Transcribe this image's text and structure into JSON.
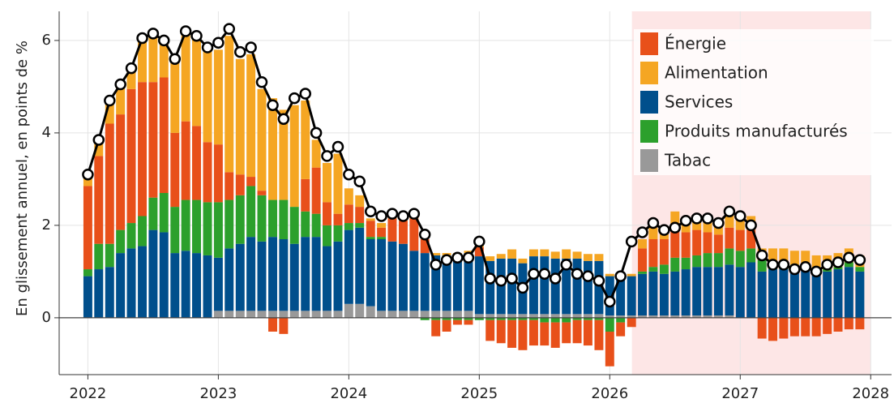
{
  "chart_data": {
    "type": "stacked_bar_line",
    "ylabel": "En glissement annuel, en points de %",
    "x": [
      2022.0,
      2022.083,
      2022.167,
      2022.25,
      2022.333,
      2022.417,
      2022.5,
      2022.583,
      2022.667,
      2022.75,
      2022.833,
      2022.917,
      2023.0,
      2023.083,
      2023.167,
      2023.25,
      2023.333,
      2023.417,
      2023.5,
      2023.583,
      2023.667,
      2023.75,
      2023.833,
      2023.917,
      2024.0,
      2024.083,
      2024.167,
      2024.25,
      2024.333,
      2024.417,
      2024.5,
      2024.583,
      2024.667,
      2024.75,
      2024.833,
      2024.917,
      2025.0,
      2025.083,
      2025.167,
      2025.25,
      2025.333,
      2025.417,
      2025.5,
      2025.583,
      2025.667,
      2025.75,
      2025.833,
      2025.917,
      2026.0,
      2026.083,
      2026.167,
      2026.25,
      2026.333,
      2026.417,
      2026.5,
      2026.583,
      2026.667,
      2026.75,
      2026.833,
      2026.917,
      2027.0,
      2027.083,
      2027.167,
      2027.25,
      2027.333,
      2027.417,
      2027.5,
      2027.583,
      2027.667,
      2027.75,
      2027.833,
      2027.917
    ],
    "series": [
      {
        "name": "Énergie",
        "color": "#e8501a",
        "values": [
          1.8,
          1.9,
          2.6,
          2.5,
          2.9,
          2.9,
          2.5,
          2.5,
          1.6,
          1.7,
          1.6,
          1.3,
          1.25,
          0.6,
          0.45,
          0.2,
          0.1,
          -0.3,
          -0.35,
          0.0,
          0.7,
          1.0,
          0.5,
          0.25,
          0.4,
          0.35,
          0.35,
          0.2,
          0.5,
          0.5,
          0.7,
          0.3,
          -0.35,
          -0.25,
          -0.1,
          -0.1,
          0.2,
          -0.45,
          -0.5,
          -0.6,
          -0.65,
          -0.55,
          -0.5,
          -0.55,
          -0.45,
          -0.5,
          -0.55,
          -0.65,
          -0.75,
          -0.3,
          -0.2,
          0.5,
          0.6,
          0.55,
          0.7,
          0.55,
          0.55,
          0.45,
          0.4,
          0.45,
          0.45,
          0.4,
          -0.45,
          -0.5,
          -0.45,
          -0.4,
          -0.4,
          -0.4,
          -0.35,
          -0.3,
          -0.25,
          -0.25
        ]
      },
      {
        "name": "Alimentation",
        "color": "#f5a623",
        "values": [
          0.25,
          0.35,
          0.5,
          0.65,
          0.5,
          0.95,
          1.05,
          0.8,
          1.6,
          1.95,
          1.95,
          2.05,
          2.05,
          2.95,
          2.5,
          2.65,
          2.2,
          2.2,
          1.95,
          2.2,
          1.7,
          0.6,
          0.85,
          1.3,
          0.35,
          0.25,
          0.05,
          0.1,
          0.05,
          0.05,
          0.05,
          0.0,
          0.05,
          0.05,
          0.05,
          0.05,
          0.1,
          0.1,
          0.1,
          0.2,
          0.1,
          0.15,
          0.15,
          0.15,
          0.2,
          0.15,
          0.15,
          0.15,
          0.05,
          0.0,
          0.05,
          0.2,
          0.25,
          0.25,
          0.3,
          0.3,
          0.3,
          0.3,
          0.3,
          0.35,
          0.3,
          0.3,
          0.25,
          0.3,
          0.3,
          0.3,
          0.3,
          0.3,
          0.3,
          0.3,
          0.3,
          0.25
        ]
      },
      {
        "name": "Services",
        "color": "#004f8c",
        "values": [
          0.9,
          1.05,
          1.1,
          1.4,
          1.5,
          1.55,
          1.9,
          1.85,
          1.4,
          1.45,
          1.4,
          1.35,
          1.15,
          1.35,
          1.45,
          1.6,
          1.5,
          1.6,
          1.55,
          1.45,
          1.6,
          1.6,
          1.4,
          1.5,
          1.6,
          1.65,
          1.45,
          1.55,
          1.5,
          1.45,
          1.3,
          1.25,
          1.2,
          1.2,
          1.2,
          1.25,
          1.25,
          1.15,
          1.2,
          1.2,
          1.1,
          1.25,
          1.25,
          1.2,
          1.2,
          1.2,
          1.15,
          1.15,
          0.85,
          0.85,
          0.85,
          0.9,
          0.95,
          0.9,
          0.95,
          1.0,
          1.05,
          1.05,
          1.05,
          1.1,
          1.1,
          1.2,
          1.0,
          1.05,
          1.05,
          1.05,
          1.05,
          1.0,
          1.0,
          1.05,
          1.1,
          1.0
        ]
      },
      {
        "name": "Produits manufacturés",
        "color": "#2ca02c",
        "values": [
          0.15,
          0.55,
          0.5,
          0.5,
          0.55,
          0.65,
          0.7,
          0.85,
          1.0,
          1.1,
          1.15,
          1.15,
          1.2,
          1.05,
          1.05,
          1.1,
          1.0,
          0.8,
          0.85,
          0.8,
          0.55,
          0.5,
          0.45,
          0.35,
          0.15,
          0.1,
          0.05,
          0.05,
          0.0,
          0.0,
          0.0,
          -0.05,
          -0.05,
          -0.05,
          -0.05,
          -0.05,
          -0.05,
          -0.05,
          -0.05,
          -0.05,
          -0.05,
          -0.05,
          -0.1,
          -0.1,
          -0.1,
          -0.05,
          -0.05,
          -0.05,
          -0.3,
          -0.1,
          0.0,
          0.05,
          0.1,
          0.2,
          0.3,
          0.25,
          0.25,
          0.3,
          0.3,
          0.35,
          0.35,
          0.3,
          0.25,
          0.15,
          0.15,
          0.1,
          0.1,
          0.05,
          0.05,
          0.05,
          0.1,
          0.1
        ]
      },
      {
        "name": "Tabac",
        "color": "#999999",
        "values": [
          0,
          0,
          0,
          0,
          0,
          0,
          0,
          0,
          0,
          0,
          0,
          0,
          0.15,
          0.15,
          0.15,
          0.15,
          0.15,
          0.15,
          0.15,
          0.15,
          0.15,
          0.15,
          0.15,
          0.15,
          0.3,
          0.3,
          0.25,
          0.15,
          0.15,
          0.15,
          0.15,
          0.15,
          0.15,
          0.15,
          0.15,
          0.15,
          0.08,
          0.08,
          0.08,
          0.08,
          0.08,
          0.08,
          0.08,
          0.08,
          0.08,
          0.08,
          0.08,
          0.08,
          0.05,
          0.05,
          0.05,
          0.05,
          0.05,
          0.05,
          0.05,
          0.05,
          0.05,
          0.05,
          0.05,
          0.05,
          0,
          0,
          0,
          0,
          0,
          0,
          0,
          0,
          0,
          0,
          0,
          0
        ]
      }
    ],
    "line": {
      "color": "#000000",
      "values": [
        3.1,
        3.85,
        4.7,
        5.05,
        5.4,
        6.05,
        6.15,
        6.0,
        5.6,
        6.2,
        6.1,
        5.85,
        5.95,
        6.25,
        5.75,
        5.85,
        5.1,
        4.6,
        4.3,
        4.75,
        4.85,
        4.0,
        3.5,
        3.7,
        3.1,
        2.95,
        2.3,
        2.2,
        2.25,
        2.2,
        2.25,
        1.8,
        1.15,
        1.25,
        1.3,
        1.3,
        1.65,
        0.85,
        0.8,
        0.85,
        0.65,
        0.95,
        0.95,
        0.85,
        1.15,
        0.95,
        0.9,
        0.8,
        0.35,
        0.9,
        1.65,
        1.85,
        2.05,
        1.9,
        1.95,
        2.1,
        2.15,
        2.15,
        2.05,
        2.3,
        2.2,
        2.0,
        1.35,
        1.15,
        1.15,
        1.05,
        1.1,
        1.0,
        1.15,
        1.2,
        1.3,
        1.25
      ]
    },
    "forecast_span": [
      2026.17,
      2028
    ],
    "forecast_color": "#fde6e6",
    "xlim": [
      2021.78,
      2028.16
    ],
    "xticks": [
      2022,
      2023,
      2024,
      2025,
      2026,
      2027,
      2028
    ],
    "ylim": [
      -1.23,
      6.63
    ],
    "yticks": [
      0,
      2,
      4,
      6
    ],
    "grid": true,
    "legend": "upper right"
  }
}
